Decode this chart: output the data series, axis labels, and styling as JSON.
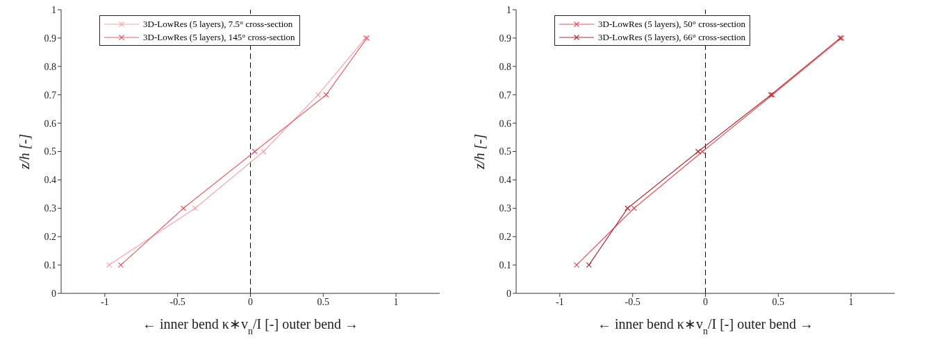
{
  "chart_data": [
    {
      "type": "line",
      "xlabel": "← inner bend κ∗v$_{n}$/I [-] outer bend →",
      "ylabel": "z/h [-]",
      "xlim": [
        -1.3,
        1.3
      ],
      "xticks": [
        -1,
        -0.5,
        0,
        0.5,
        1
      ],
      "ylim": [
        0,
        1
      ],
      "yticks": [
        0,
        0.1,
        0.2,
        0.3,
        0.4,
        0.5,
        0.6,
        0.7,
        0.8,
        0.9,
        1
      ],
      "grid": false,
      "legend": "top left",
      "marker": "cross",
      "line_style": "solid",
      "ref_lines": [
        {
          "axis": "x",
          "value": 0,
          "color": "#000000",
          "line_style": "dashed"
        }
      ],
      "series": [
        {
          "name": "3D-LowRes (5 layers), 7.5° cross-section",
          "color": "#f4a6ad",
          "x": [
            -0.97,
            -0.38,
            0.09,
            0.465,
            0.79
          ],
          "values": [
            0.1,
            0.3,
            0.5,
            0.7,
            0.9
          ]
        },
        {
          "name": "3D-LowRes (5 layers), 145° cross-section",
          "color": "#e0606b",
          "x": [
            -0.89,
            -0.46,
            0.03,
            0.52,
            0.8
          ],
          "values": [
            0.1,
            0.3,
            0.5,
            0.7,
            0.9
          ]
        }
      ]
    },
    {
      "type": "line",
      "xlabel": "← inner bend κ∗v$_{n}$/I [-] outer bend →",
      "ylabel": "z/h [-]",
      "xlim": [
        -1.3,
        1.3
      ],
      "xticks": [
        -1,
        -0.5,
        0,
        0.5,
        1
      ],
      "ylim": [
        0,
        1
      ],
      "yticks": [
        0,
        0.1,
        0.2,
        0.3,
        0.4,
        0.5,
        0.6,
        0.7,
        0.8,
        0.9,
        1
      ],
      "grid": false,
      "legend": "top left",
      "marker": "cross",
      "line_style": "solid",
      "ref_lines": [
        {
          "axis": "x",
          "value": 0,
          "color": "#000000",
          "line_style": "dashed"
        }
      ],
      "series": [
        {
          "name": "3D-LowRes (5 layers), 50° cross-section",
          "color": "#e0505a",
          "x": [
            -0.885,
            -0.49,
            -0.02,
            0.46,
            0.935
          ],
          "values": [
            0.1,
            0.3,
            0.5,
            0.7,
            0.9
          ]
        },
        {
          "name": "3D-LowRes (5 layers), 66° cross-section",
          "color": "#a83038",
          "x": [
            -0.8,
            -0.535,
            -0.05,
            0.45,
            0.925
          ],
          "values": [
            0.1,
            0.3,
            0.5,
            0.7,
            0.9
          ]
        }
      ]
    }
  ]
}
